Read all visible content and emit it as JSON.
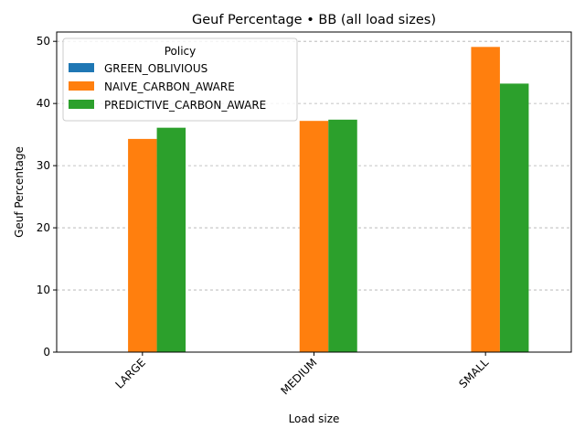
{
  "chart_data": {
    "type": "bar",
    "title": "Geuf Percentage • BB (all load sizes)",
    "xlabel": "Load size",
    "ylabel": "Geuf Percentage",
    "categories": [
      "LARGE",
      "MEDIUM",
      "SMALL"
    ],
    "series": [
      {
        "name": "GREEN_OBLIVIOUS",
        "color": "#1f77b4",
        "values": [
          0,
          0,
          0
        ]
      },
      {
        "name": "NAIVE_CARBON_AWARE",
        "color": "#ff7f0e",
        "values": [
          34.3,
          37.2,
          49.1
        ]
      },
      {
        "name": "PREDICTIVE_CARBON_AWARE",
        "color": "#2ca02c",
        "values": [
          36.1,
          37.4,
          43.2
        ]
      }
    ],
    "ylim": [
      0,
      51.5
    ],
    "yticks": [
      0,
      10,
      20,
      30,
      40,
      50
    ],
    "grid": "y-dashed",
    "legend": {
      "title": "Policy",
      "placement": "top-left"
    },
    "x_tick_rotation": -45
  }
}
